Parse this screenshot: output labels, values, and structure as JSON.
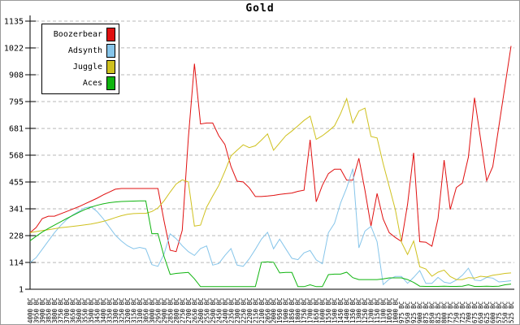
{
  "chart_data": {
    "type": "line",
    "title": "Gold",
    "legend_position": "top-left",
    "grid": "horizontal-dashed",
    "grid_color": "#b9b9b9",
    "axis_color": "#000000",
    "ylim": [
      1,
      1135
    ],
    "y_ticks": [
      1,
      114,
      228,
      341,
      455,
      568,
      681,
      795,
      908,
      1022,
      1135
    ],
    "x_categories": [
      "4000 BC",
      "3950 BC",
      "3900 BC",
      "3850 BC",
      "3800 BC",
      "3750 BC",
      "3700 BC",
      "3650 BC",
      "3600 BC",
      "3550 BC",
      "3500 BC",
      "3450 BC",
      "3400 BC",
      "3350 BC",
      "3300 BC",
      "3250 BC",
      "3200 BC",
      "3150 BC",
      "3100 BC",
      "3050 BC",
      "3000 BC",
      "2950 BC",
      "2900 BC",
      "2850 BC",
      "2800 BC",
      "2750 BC",
      "2700 BC",
      "2650 BC",
      "2600 BC",
      "2550 BC",
      "2500 BC",
      "2450 BC",
      "2400 BC",
      "2350 BC",
      "2300 BC",
      "2250 BC",
      "2200 BC",
      "2150 BC",
      "2100 BC",
      "2050 BC",
      "2000 BC",
      "1950 BC",
      "1900 BC",
      "1850 BC",
      "1800 BC",
      "1750 BC",
      "1700 BC",
      "1650 BC",
      "1600 BC",
      "1550 BC",
      "1500 BC",
      "1450 BC",
      "1400 BC",
      "1350 BC",
      "1300 BC",
      "1250 BC",
      "1200 BC",
      "1150 BC",
      "1100 BC",
      "1050 BC",
      "1000 BC",
      "975 BC",
      "950 BC",
      "925 BC",
      "900 BC",
      "875 BC",
      "850 BC",
      "825 BC",
      "800 BC",
      "775 BC",
      "750 BC",
      "725 BC",
      "700 BC",
      "675 BC",
      "650 BC",
      "625 BC",
      "600 BC",
      "575 BC",
      "550 BC",
      "525 BC"
    ],
    "series": [
      {
        "name": "Boozerbear",
        "color": "#e01010",
        "values": [
          240,
          262,
          300,
          310,
          310,
          320,
          330,
          340,
          350,
          362,
          374,
          386,
          400,
          412,
          424,
          427,
          427,
          427,
          427,
          427,
          427,
          427,
          290,
          166,
          160,
          250,
          640,
          955,
          700,
          704,
          704,
          650,
          613,
          520,
          458,
          455,
          430,
          393,
          393,
          395,
          398,
          402,
          405,
          408,
          415,
          420,
          633,
          371,
          440,
          490,
          509,
          509,
          462,
          462,
          555,
          419,
          268,
          406,
          298,
          240,
          220,
          203,
          360,
          578,
          202,
          200,
          183,
          300,
          547,
          338,
          431,
          450,
          560,
          811,
          636,
          460,
          520,
          690,
          860,
          1030
        ]
      },
      {
        "name": "Adsynth",
        "color": "#86c5ea",
        "values": [
          114,
          135,
          170,
          205,
          240,
          270,
          295,
          315,
          330,
          345,
          350,
          330,
          300,
          265,
          230,
          205,
          185,
          172,
          178,
          172,
          105,
          98,
          150,
          235,
          215,
          185,
          160,
          144,
          173,
          184,
          103,
          110,
          144,
          173,
          103,
          98,
          130,
          170,
          213,
          242,
          172,
          213,
          172,
          132,
          126,
          155,
          165,
          125,
          109,
          240,
          280,
          366,
          430,
          511,
          176,
          247,
          267,
          202,
          21,
          44,
          55,
          55,
          26,
          51,
          80,
          26,
          26,
          51,
          31,
          26,
          40,
          60,
          90,
          40,
          37,
          51,
          48,
          32,
          34,
          37
        ]
      },
      {
        "name": "Juggle",
        "color": "#cfc11e",
        "values": [
          241,
          245,
          249,
          253,
          257,
          261,
          264,
          267,
          270,
          273,
          277,
          282,
          288,
          295,
          304,
          312,
          318,
          321,
          322,
          322,
          330,
          345,
          375,
          412,
          446,
          464,
          455,
          268,
          272,
          348,
          395,
          440,
          500,
          565,
          589,
          612,
          600,
          608,
          632,
          658,
          589,
          620,
          650,
          670,
          692,
          715,
          733,
          635,
          650,
          670,
          692,
          744,
          807,
          704,
          755,
          767,
          647,
          641,
          532,
          435,
          337,
          200,
          148,
          205,
          96,
          87,
          56,
          73,
          82,
          55,
          42,
          42,
          50,
          48,
          56,
          53,
          60,
          64,
          68,
          70
        ]
      },
      {
        "name": "Aces",
        "color": "#0fb40f",
        "values": [
          206,
          225,
          243,
          258,
          272,
          286,
          300,
          313,
          326,
          338,
          348,
          356,
          362,
          367,
          370,
          372,
          373,
          374,
          375,
          375,
          236,
          236,
          140,
          64,
          68,
          70,
          72,
          45,
          12,
          12,
          12,
          12,
          12,
          12,
          12,
          12,
          12,
          12,
          115,
          117,
          115,
          70,
          72,
          72,
          12,
          12,
          20,
          12,
          12,
          63,
          65,
          65,
          73,
          50,
          42,
          42,
          42,
          42,
          45,
          49,
          49,
          49,
          42,
          30,
          14,
          13,
          13,
          13,
          14,
          13,
          13,
          14,
          20,
          13,
          13,
          14,
          13,
          14,
          20,
          23
        ]
      }
    ]
  }
}
